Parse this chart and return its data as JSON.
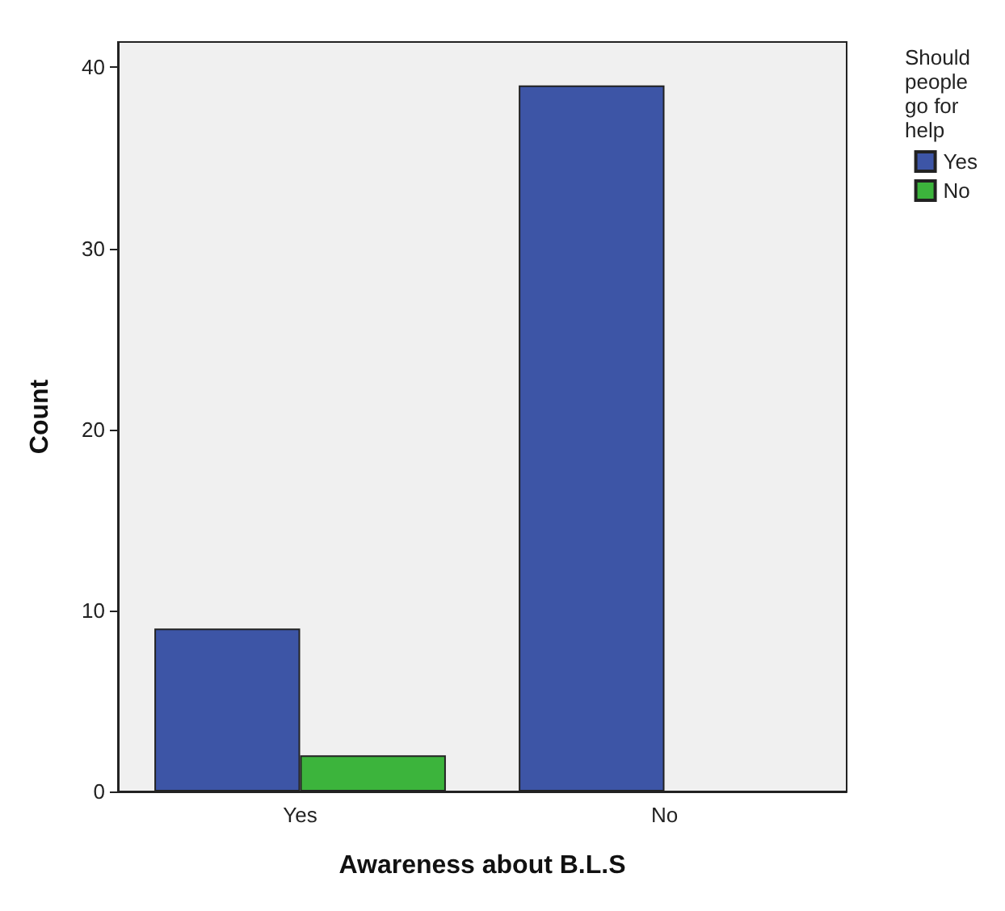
{
  "chart_data": {
    "type": "bar",
    "xlabel": "Awareness about B.L.S",
    "ylabel": "Count",
    "legend_title": "Should people go for help",
    "legend": "top right",
    "categories": [
      "Yes",
      "No"
    ],
    "series": [
      {
        "name": "Yes",
        "color": "#3d55a6",
        "values": [
          9,
          39
        ]
      },
      {
        "name": "No",
        "color": "#3cb43c",
        "values": [
          2,
          0
        ]
      }
    ],
    "ylim": [
      0,
      41.4
    ],
    "yticks": [
      0,
      10,
      20,
      30,
      40
    ],
    "grid": false
  }
}
